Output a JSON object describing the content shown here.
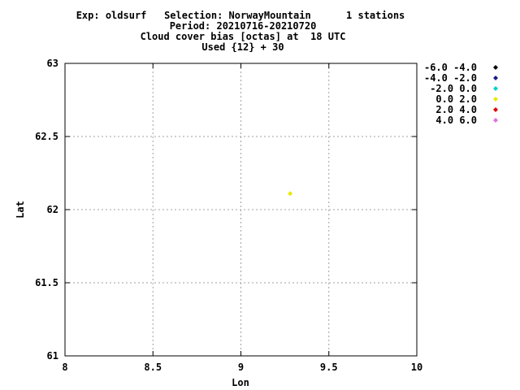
{
  "chart_data": {
    "type": "scatter",
    "title_lines": [
      "Exp: oldsurf   Selection: NorwayMountain      1 stations",
      "Period: 20210716-20210720",
      "Cloud cover bias [octas] at  18 UTC",
      "Used {12} + 30"
    ],
    "xlabel": "Lon",
    "ylabel": "Lat",
    "xlim": [
      8,
      10
    ],
    "ylim": [
      61,
      63
    ],
    "xticks": [
      8,
      8.5,
      9,
      9.5,
      10
    ],
    "xtick_labels": [
      "8",
      "8.5",
      "9",
      "9.5",
      "10"
    ],
    "yticks": [
      61,
      61.5,
      62,
      62.5,
      63
    ],
    "ytick_labels": [
      "61",
      "61.5",
      "62",
      "62.5",
      "63"
    ],
    "grid": true,
    "legend_position": "right",
    "legend": [
      {
        "label": "-6.0 -4.0",
        "color": "#000000"
      },
      {
        "label": "-4.0 -2.0",
        "color": "#1a1a8c"
      },
      {
        "label": "-2.0 0.0",
        "color": "#00d0d0"
      },
      {
        "label": "0.0 2.0",
        "color": "#e8e800"
      },
      {
        "label": "2.0 4.0",
        "color": "#e00000"
      },
      {
        "label": "4.0 6.0",
        "color": "#e070e0"
      }
    ],
    "points": [
      {
        "x": 9.28,
        "y": 62.11,
        "color": "#e8e800"
      }
    ]
  }
}
